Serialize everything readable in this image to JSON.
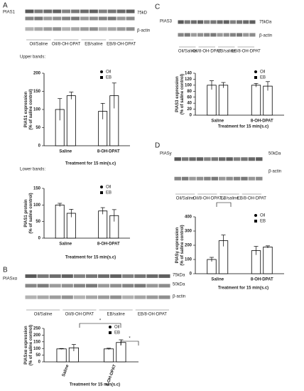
{
  "chart_data": [
    {
      "type": "bar",
      "panel_label": "A",
      "subtitle": "Upper bands:",
      "blot": {
        "labels": [
          "PIAS1",
          "75kD",
          "β-actin"
        ],
        "lanes": [
          "Oil/Saline",
          "Oil/8-OH-DPAT",
          "EB/saline",
          "EB/8-OH-DPAT"
        ]
      },
      "ylabel": "PIAS1 expression\n(% of saline control)",
      "xlabel": "Treatment for 15 min(s.c)",
      "categories": [
        "Saline",
        "8-OH-DPAT"
      ],
      "series": [
        {
          "name": "Oil",
          "color": "#ffffff",
          "marker": "circle",
          "values": [
            100,
            95
          ],
          "errors": [
            30,
            22
          ]
        },
        {
          "name": "EB",
          "color": "#ffffff",
          "marker": "square",
          "values": [
            138,
            138
          ],
          "errors": [
            10,
            35
          ]
        }
      ],
      "ylim": [
        0,
        200
      ],
      "yticks": [
        0,
        50,
        100,
        150,
        200
      ]
    },
    {
      "type": "bar",
      "subtitle": "Lower bands:",
      "ylabel": "PIAS1 protein\n(% of saline control)",
      "xlabel": "Treatment for 15 min(s.c)",
      "categories": [
        "Saline",
        "8-OH-DPAT"
      ],
      "series": [
        {
          "name": "Oil",
          "color": "#ffffff",
          "marker": "circle",
          "values": [
            100,
            82
          ],
          "errors": [
            5,
            10
          ]
        },
        {
          "name": "EB",
          "color": "#ffffff",
          "marker": "square",
          "values": [
            75,
            68
          ],
          "errors": [
            12,
            18
          ]
        }
      ],
      "ylim": [
        0,
        150
      ],
      "yticks": [
        0,
        50,
        100,
        150
      ]
    },
    {
      "type": "bar",
      "panel_label": "B",
      "blot": {
        "labels": [
          "PIASxα",
          "75kDa",
          "50kDa",
          "β-actin"
        ],
        "lanes": [
          "Oil/Saline",
          "Oil/8-OH-DPAT",
          "EB/saline",
          "EB/8-OH-DPAT"
        ]
      },
      "ylabel": "PIASxα expression\n(% of saline control)",
      "xlabel": "Treatment  for 15 min(s.c)",
      "categories": [
        "Saline",
        "8-OH-DPAT"
      ],
      "rotate_categories": true,
      "series": [
        {
          "name": "Oil",
          "color": "#ffffff",
          "marker": "circle",
          "values": [
            97,
            97
          ],
          "errors": [
            3,
            5
          ]
        },
        {
          "name": "EB",
          "color": "#ffffff",
          "marker": "square",
          "values": [
            105,
            145
          ],
          "errors": [
            25,
            20
          ]
        }
      ],
      "ylim": [
        0,
        250
      ],
      "yticks": [
        0,
        50,
        100,
        150,
        200,
        250
      ],
      "annotations": [
        "*",
        "*"
      ]
    },
    {
      "type": "bar",
      "panel_label": "C",
      "blot": {
        "labels": [
          "PIAS3",
          "75kDa",
          "β-actin"
        ],
        "lanes": [
          "Oil/Saline",
          "Oil/8-OH-DPAT",
          "EB/saline",
          "EB/8-OH-DPAT"
        ]
      },
      "ylabel": "PIAS3 expression\n(% of saline control)",
      "xlabel": "Treatment for 15 min(s.c)",
      "categories": [
        "Saline",
        "8-OH-DPAT"
      ],
      "series": [
        {
          "name": "Oil",
          "color": "#ffffff",
          "marker": "circle",
          "values": [
            100,
            100
          ],
          "errors": [
            15,
            6
          ]
        },
        {
          "name": "EB",
          "color": "#ffffff",
          "marker": "square",
          "values": [
            100,
            97
          ],
          "errors": [
            9,
            15
          ]
        }
      ],
      "ylim": [
        0,
        140
      ],
      "yticks": [
        0,
        20,
        40,
        60,
        80,
        100,
        120,
        140
      ]
    },
    {
      "type": "bar",
      "panel_label": "D",
      "blot": {
        "labels": [
          "PIASy",
          "50kDa",
          "β-actin"
        ],
        "lanes": [
          "Oil/Saline",
          "Oil/8-OH-DPAT",
          "EB/saline",
          "EB/8-OH-DPAT"
        ]
      },
      "ylabel": "PIASy expression\n(% of saline control)",
      "xlabel": "Treatment for 15 min(s.c)",
      "categories": [
        "Saline",
        "8-OH-DPAT"
      ],
      "series": [
        {
          "name": "Oil",
          "color": "#ffffff",
          "marker": "circle",
          "values": [
            100,
            162
          ],
          "errors": [
            15,
            30
          ]
        },
        {
          "name": "EB",
          "color": "#ffffff",
          "marker": "square",
          "values": [
            232,
            188
          ],
          "errors": [
            40,
            8
          ]
        }
      ],
      "ylim": [
        0,
        400
      ],
      "yticks": [
        0,
        100,
        200,
        300,
        400
      ],
      "annotations": [
        "*"
      ]
    }
  ]
}
